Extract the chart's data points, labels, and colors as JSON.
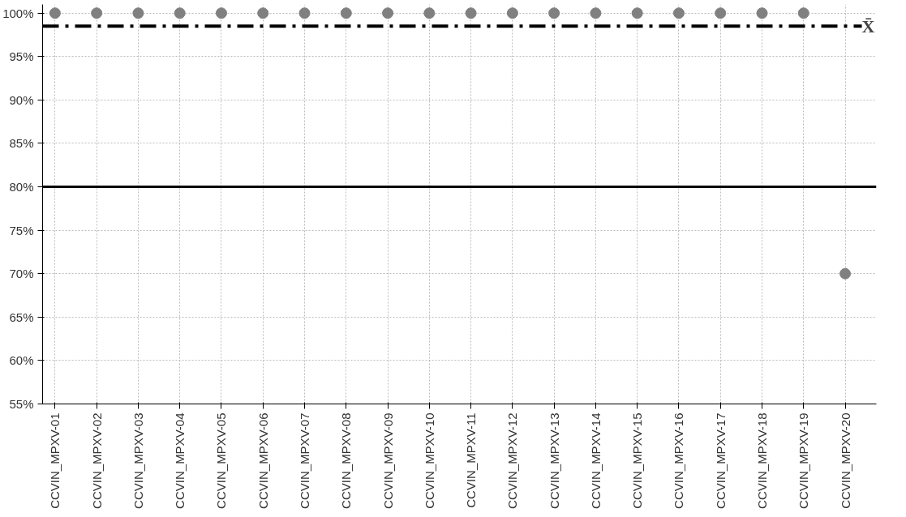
{
  "chart_data": {
    "type": "scatter",
    "categories": [
      "CCVIN_MPXV-01",
      "CCVIN_MPXV-02",
      "CCVIN_MPXV-03",
      "CCVIN_MPXV-04",
      "CCVIN_MPXV-05",
      "CCVIN_MPXV-06",
      "CCVIN_MPXV-07",
      "CCVIN_MPXV-08",
      "CCVIN_MPXV-09",
      "CCVIN_MPXV-10",
      "CCVIN_MPXV-11",
      "CCVIN_MPXV-12",
      "CCVIN_MPXV-13",
      "CCVIN_MPXV-14",
      "CCVIN_MPXV-15",
      "CCVIN_MPXV-16",
      "CCVIN_MPXV-17",
      "CCVIN_MPXV-18",
      "CCVIN_MPXV-19",
      "CCVIN_MPXV-20"
    ],
    "series": [
      {
        "color": "#808080",
        "values": [
          100,
          100,
          100,
          100,
          100,
          100,
          100,
          100,
          100,
          100,
          100,
          100,
          100,
          100,
          100,
          100,
          100,
          100,
          100,
          70
        ]
      }
    ],
    "ylim": [
      55,
      101
    ],
    "yticks": [
      {
        "value": 55,
        "label": "55%"
      },
      {
        "value": 60,
        "label": "60%"
      },
      {
        "value": 65,
        "label": "65%"
      },
      {
        "value": 70,
        "label": "70%"
      },
      {
        "value": 75,
        "label": "75%"
      },
      {
        "value": 80,
        "label": "80%"
      },
      {
        "value": 85,
        "label": "85%"
      },
      {
        "value": 90,
        "label": "90%"
      },
      {
        "value": 95,
        "label": "95%"
      },
      {
        "value": 100,
        "label": "100%"
      }
    ],
    "ref_lines": [
      {
        "axis": "y",
        "value": 98.5,
        "label": "X̄",
        "color": "#000000",
        "line_style": "dashdot"
      },
      {
        "axis": "y",
        "value": 80,
        "label": null,
        "color": "#000000",
        "line_style": "solid"
      }
    ],
    "grid": true,
    "marker": "circle"
  }
}
